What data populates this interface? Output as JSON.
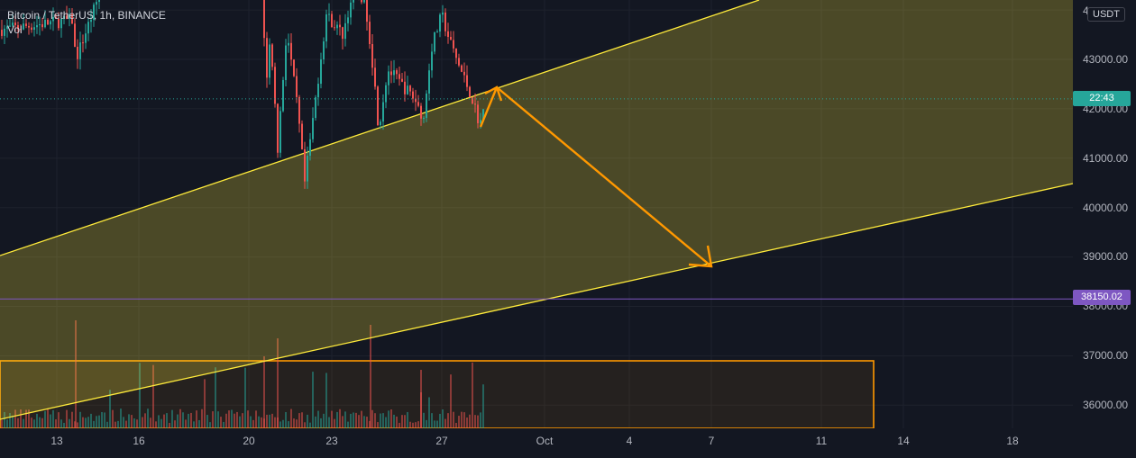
{
  "legend": {
    "symbol": "Bitcoin / TetherUS, 1h, BINANCE",
    "indicator": "Vol"
  },
  "currency_label": "USDT",
  "countdown_label": "22:43",
  "level_label": "38150.02",
  "colors": {
    "background": "#131722",
    "up": "#26a69a",
    "down": "#ef5350",
    "channel_line": "#ffeb3b",
    "arrow": "#ff9800",
    "level_line": "#7e57c2",
    "countdown_bg": "#26a69a"
  },
  "chart_data": {
    "type": "candlestick",
    "symbol": "Bitcoin / TetherUS",
    "interval": "1h",
    "exchange": "BINANCE",
    "y_axis": {
      "range": [
        35500,
        44100
      ],
      "ticks": [
        "4",
        "43000.00",
        "42000.00",
        "41000.00",
        "40000.00",
        "39000.00",
        "38000.00",
        "37000.00",
        "36000.00"
      ]
    },
    "x_axis": {
      "ticks": [
        "13",
        "16",
        "20",
        "23",
        "27",
        "Oct",
        "4",
        "7",
        "11",
        "14",
        "18"
      ]
    },
    "current_price": 42200,
    "horizontal_level": 38150.02,
    "ascending_channel": {
      "upper_line": [
        {
          "x": "Sep 9",
          "y": 39000
        },
        {
          "x": "Oct 16",
          "y": 44300
        }
      ],
      "lower_line": [
        {
          "x": "Sep 9",
          "y": 35700
        },
        {
          "x": "Oct 19",
          "y": 40500
        }
      ]
    },
    "projected_path": [
      {
        "x": "Sep 28",
        "y": 41600
      },
      {
        "x": "Sep 29",
        "y": 42400
      },
      {
        "x": "Oct 7",
        "y": 38800
      }
    ],
    "support_zone": {
      "price_top": 36880,
      "end": "Oct 12"
    },
    "volume_series": "Vol"
  }
}
